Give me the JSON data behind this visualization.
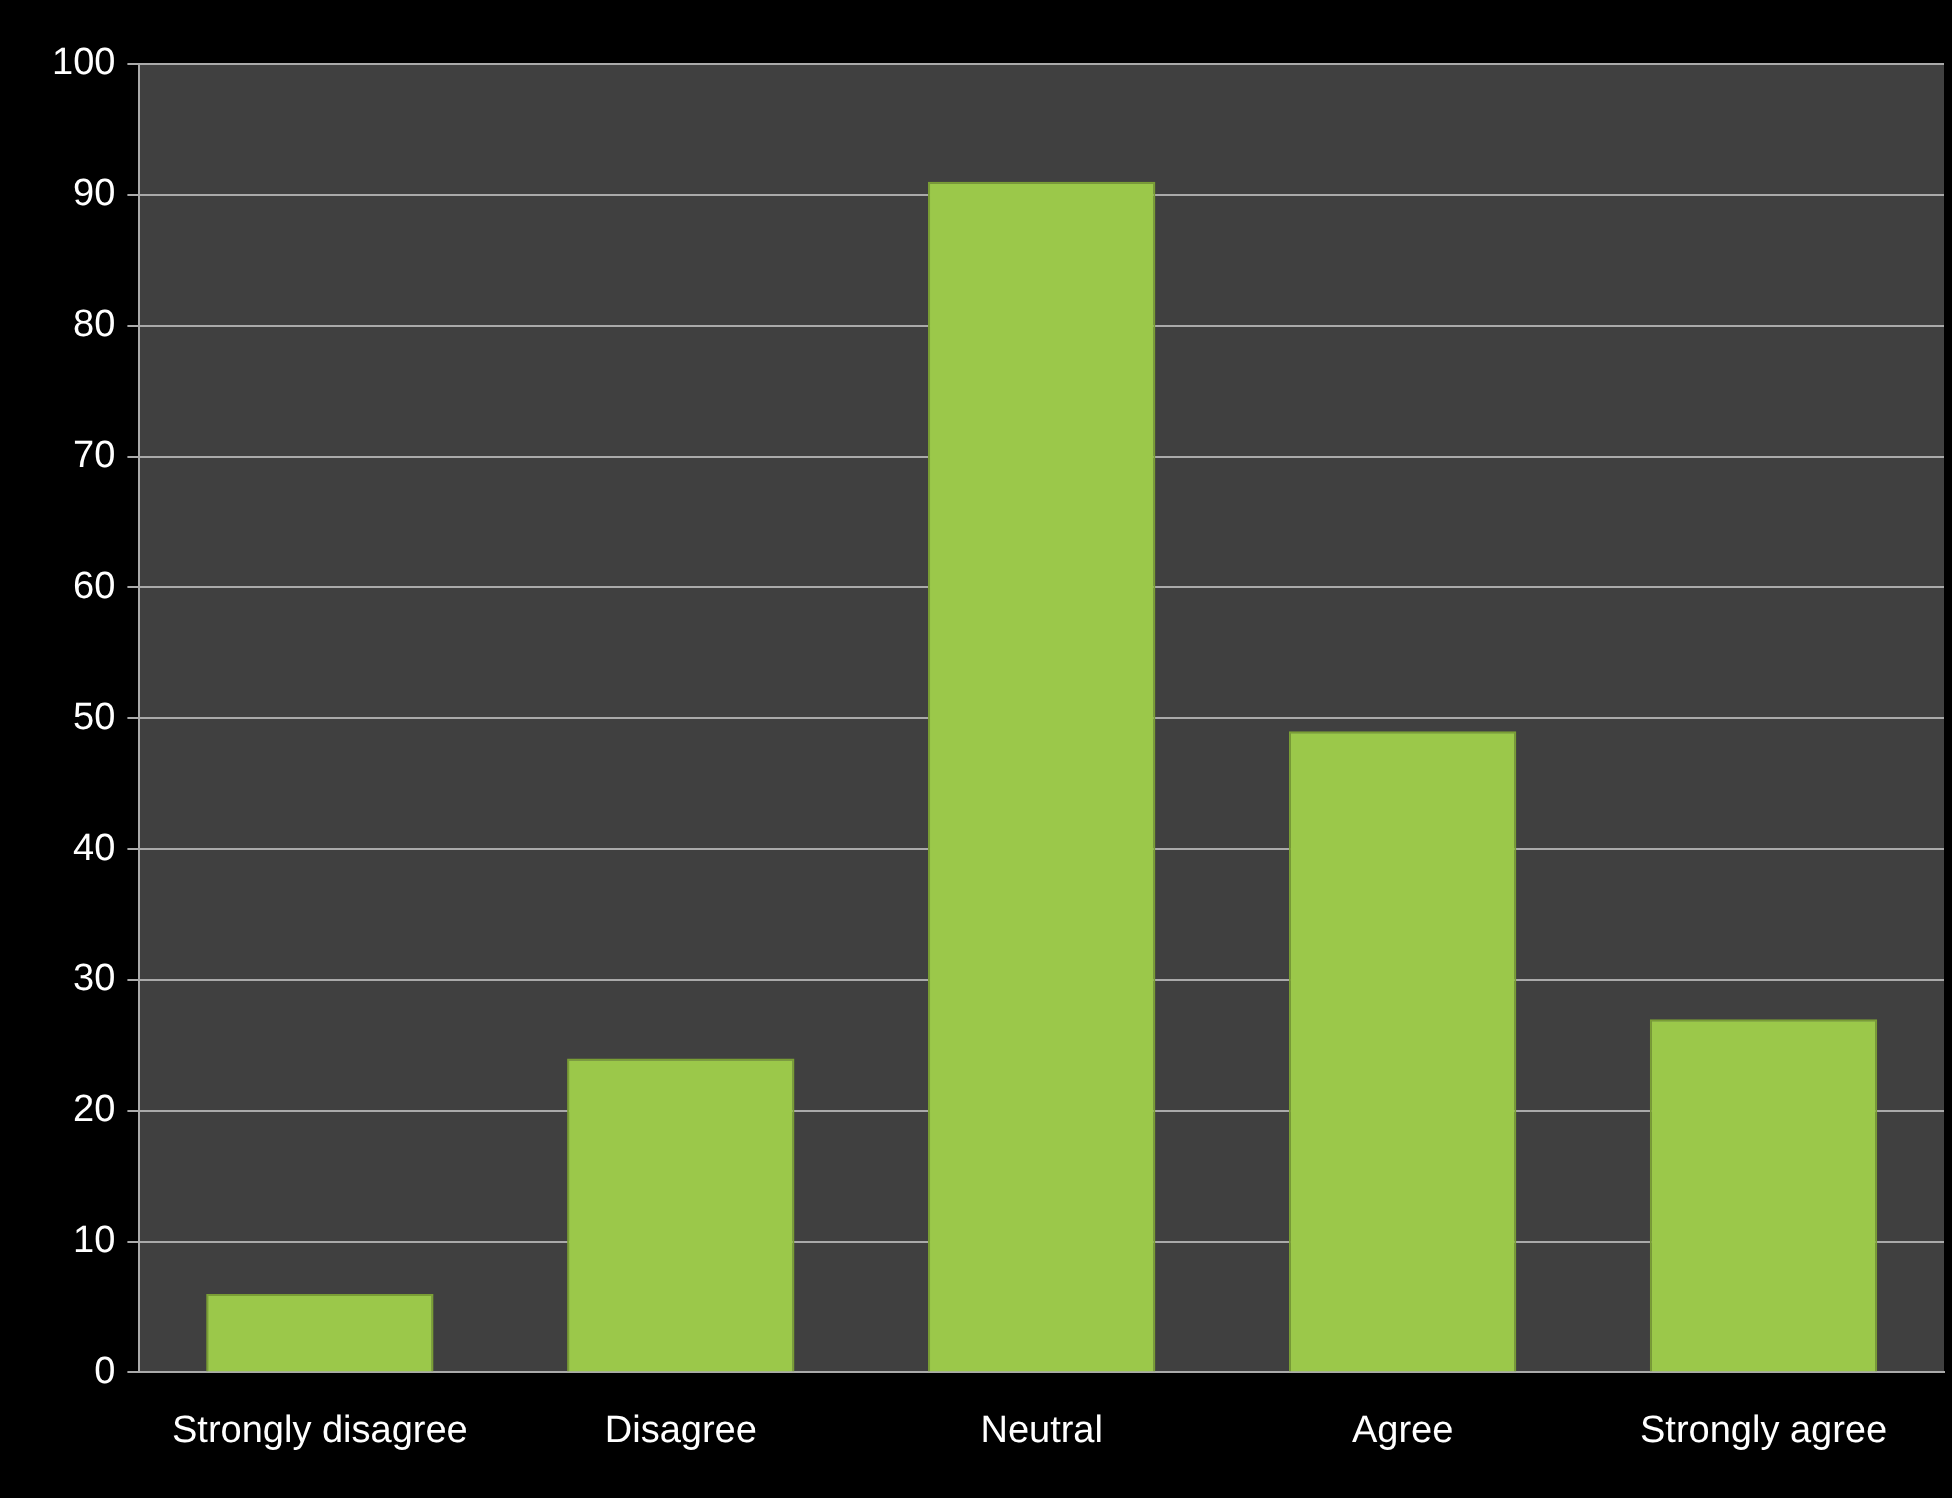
{
  "chart_data": {
    "type": "bar",
    "categories": [
      "Strongly disagree",
      "Disagree",
      "Neutral",
      "Agree",
      "Strongly agree"
    ],
    "values": [
      6,
      24,
      91,
      49,
      27
    ],
    "color": "#9bc84a",
    "ylim": [
      0,
      100
    ],
    "yticks": [
      0,
      10,
      20,
      30,
      40,
      50,
      60,
      70,
      80,
      90,
      100
    ],
    "grid": "y",
    "legend": false
  }
}
